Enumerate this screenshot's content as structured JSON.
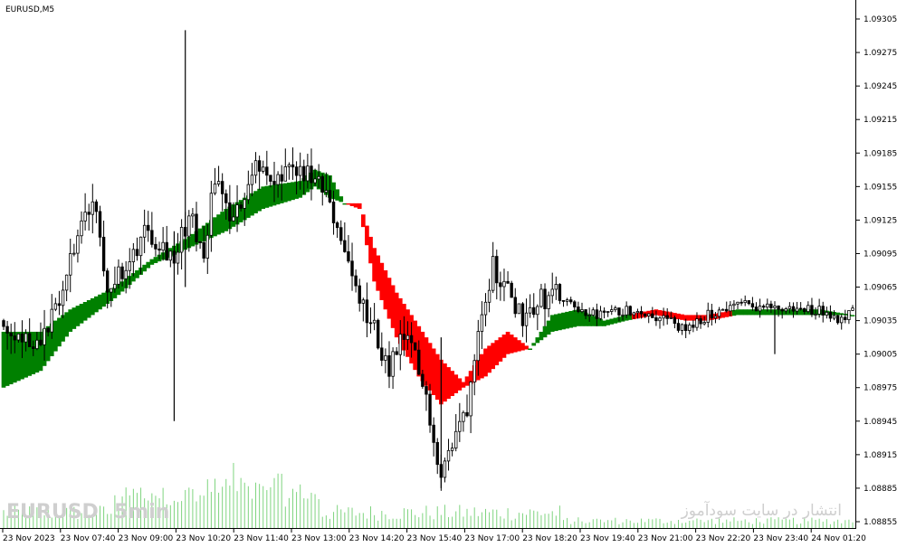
{
  "chart_title": "EURUSD,M5",
  "watermark_symbol": "EURUSD",
  "watermark_timeframe": "5min",
  "watermark_text": "انتشار در سایت سودآموز",
  "colors": {
    "candle": "#000000",
    "band_up": "#008000",
    "band_down": "#ff0000",
    "volume": "#7fd47f",
    "axis": "#000000"
  },
  "chart_data": {
    "type": "candlestick",
    "symbol": "EURUSD",
    "timeframe": "M5",
    "ylim": [
      1.0885,
      1.0931
    ],
    "y_ticks": [
      "1.09305",
      "1.09275",
      "1.09245",
      "1.09215",
      "1.09185",
      "1.09155",
      "1.09125",
      "1.09095",
      "1.09065",
      "1.09035",
      "1.09005",
      "1.08975",
      "1.08945",
      "1.08915",
      "1.08885",
      "1.08855"
    ],
    "x_ticks": [
      "23 Nov 2023",
      "23 Nov 07:40",
      "23 Nov 09:00",
      "23 Nov 10:20",
      "23 Nov 11:40",
      "23 Nov 13:00",
      "23 Nov 14:20",
      "23 Nov 15:40",
      "23 Nov 17:00",
      "23 Nov 18:20",
      "23 Nov 19:40",
      "23 Nov 21:00",
      "23 Nov 22:20",
      "23 Nov 23:40",
      "24 Nov 01:20"
    ],
    "close_keypoints": [
      [
        0,
        1.09035
      ],
      [
        8,
        1.09015
      ],
      [
        14,
        1.0904
      ],
      [
        20,
        1.0911
      ],
      [
        24,
        1.0914
      ],
      [
        28,
        1.0907
      ],
      [
        33,
        1.09075
      ],
      [
        38,
        1.0912
      ],
      [
        44,
        1.091
      ],
      [
        46,
        1.0909
      ],
      [
        50,
        1.0913
      ],
      [
        54,
        1.09095
      ],
      [
        57,
        1.09165
      ],
      [
        62,
        1.0912
      ],
      [
        68,
        1.0918
      ],
      [
        72,
        1.09155
      ],
      [
        80,
        1.0917
      ],
      [
        86,
        1.0915
      ],
      [
        90,
        1.0912
      ],
      [
        95,
        1.0906
      ],
      [
        100,
        1.09025
      ],
      [
        104,
        1.0899
      ],
      [
        108,
        1.0902
      ],
      [
        111,
        1.09
      ],
      [
        115,
        1.0895
      ],
      [
        118,
        1.089
      ],
      [
        121,
        1.08925
      ],
      [
        125,
        1.0896
      ],
      [
        128,
        1.09035
      ],
      [
        132,
        1.09085
      ],
      [
        136,
        1.0906
      ],
      [
        140,
        1.0904
      ],
      [
        143,
        1.0905
      ],
      [
        148,
        1.0906
      ],
      [
        154,
        1.09045
      ],
      [
        160,
        1.0904
      ],
      [
        170,
        1.09045
      ],
      [
        180,
        1.09035
      ],
      [
        184,
        1.09025
      ],
      [
        190,
        1.0904
      ],
      [
        198,
        1.0905
      ],
      [
        210,
        1.09045
      ],
      [
        220,
        1.09045
      ],
      [
        226,
        1.09035
      ],
      [
        229,
        1.0905
      ]
    ],
    "band_keypoints": [
      [
        0,
        1.09025,
        1.08975
      ],
      [
        10,
        1.09025,
        1.0899
      ],
      [
        18,
        1.09045,
        1.09025
      ],
      [
        30,
        1.09065,
        1.09055
      ],
      [
        40,
        1.0909,
        1.09085
      ],
      [
        50,
        1.0911,
        1.091
      ],
      [
        60,
        1.09135,
        1.09115
      ],
      [
        70,
        1.09155,
        1.09135
      ],
      [
        80,
        1.0916,
        1.09145
      ],
      [
        84,
        1.0917,
        1.09155
      ],
      [
        88,
        1.09165,
        1.09145
      ],
      [
        92,
        1.0914,
        1.0914
      ],
      [
        96,
        1.0914,
        1.09135
      ],
      [
        100,
        1.091,
        1.0907
      ],
      [
        106,
        1.0906,
        1.0902
      ],
      [
        112,
        1.0903,
        1.08985
      ],
      [
        118,
        1.09,
        1.0896
      ],
      [
        124,
        1.0898,
        1.08975
      ],
      [
        130,
        1.0901,
        1.08985
      ],
      [
        136,
        1.09025,
        1.09005
      ],
      [
        142,
        1.0901,
        1.0901
      ],
      [
        148,
        1.0904,
        1.09025
      ],
      [
        155,
        1.09045,
        1.0903
      ],
      [
        162,
        1.09035,
        1.0903
      ],
      [
        168,
        1.0904,
        1.09035
      ],
      [
        176,
        1.09045,
        1.0904
      ],
      [
        184,
        1.0904,
        1.09035
      ],
      [
        190,
        1.0904,
        1.09035
      ],
      [
        198,
        1.09045,
        1.0904
      ],
      [
        210,
        1.09045,
        1.0904
      ],
      [
        220,
        1.09045,
        1.0904
      ],
      [
        229,
        1.0904,
        1.0904
      ]
    ],
    "band_red_ranges": [
      [
        93,
        141
      ],
      [
        170,
        196
      ]
    ],
    "spikes": [
      [
        49,
        1.09295,
        1.09065
      ],
      [
        46,
        1.09115,
        1.08945
      ],
      [
        118,
        1.0902,
        1.08885
      ],
      [
        208,
        1.09045,
        1.09005
      ]
    ]
  }
}
